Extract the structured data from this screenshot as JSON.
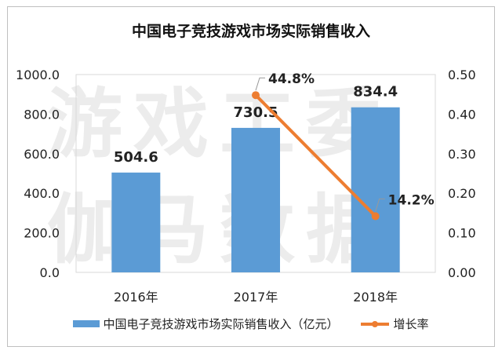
{
  "chart_data": {
    "type": "bar+line",
    "title": "中国电子竞技游戏市场实际销售收入",
    "categories": [
      "2016年",
      "2017年",
      "2018年"
    ],
    "series": [
      {
        "name": "中国电子竞技游戏市场实际销售收入（亿元）",
        "type": "bar",
        "axis": "left",
        "values": [
          504.6,
          730.5,
          834.4
        ],
        "labels": [
          "504.6",
          "730.5",
          "834.4"
        ],
        "color": "#5b9bd5"
      },
      {
        "name": "增长率",
        "type": "line",
        "axis": "right",
        "values": [
          null,
          0.448,
          0.142
        ],
        "labels": [
          "",
          "44.8%",
          "14.2%"
        ],
        "color": "#ed7d31"
      }
    ],
    "y_left": {
      "ylim": [
        0,
        1000
      ],
      "ticks": [
        "0.0",
        "200.0",
        "400.0",
        "600.0",
        "800.0",
        "1000.0"
      ]
    },
    "y_right": {
      "ylim": [
        0,
        0.5
      ],
      "ticks": [
        "0.00",
        "0.10",
        "0.20",
        "0.30",
        "0.40",
        "0.50"
      ]
    },
    "grid": false,
    "legend_position": "bottom"
  },
  "watermark": {
    "line1": "游戏工委",
    "line2": "伽马数据"
  }
}
